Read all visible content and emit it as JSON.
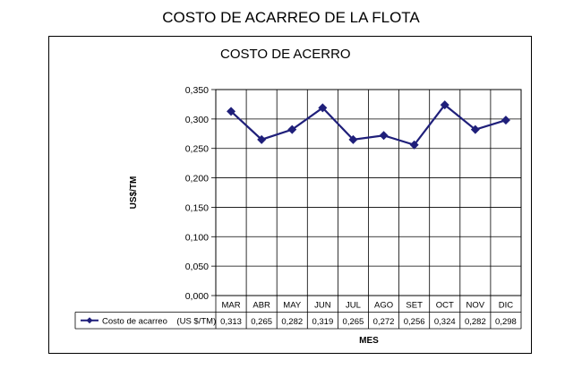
{
  "page_title": "COSTO DE ACARREO DE LA FLOTA",
  "chart_data": {
    "type": "line",
    "title": "COSTO DE ACERRO",
    "xlabel": "MES",
    "ylabel": "US$/TM",
    "ylim": [
      0,
      0.35
    ],
    "yticks": [
      "0,000",
      "0,050",
      "0,100",
      "0,150",
      "0,200",
      "0,250",
      "0,300",
      "0,350"
    ],
    "yticks_values": [
      0,
      0.05,
      0.1,
      0.15,
      0.2,
      0.25,
      0.3,
      0.35
    ],
    "grid": true,
    "categories": [
      "MAR",
      "ABR",
      "MAY",
      "JUN",
      "JUL",
      "AGO",
      "SET",
      "OCT",
      "NOV",
      "DIC"
    ],
    "series": [
      {
        "name": "Costo de acarreo    (US $/TM)",
        "values": [
          0.313,
          0.265,
          0.282,
          0.319,
          0.265,
          0.272,
          0.256,
          0.324,
          0.282,
          0.298
        ],
        "value_labels": [
          "0,313",
          "0,265",
          "0,282",
          "0,319",
          "0,265",
          "0,272",
          "0,256",
          "0,324",
          "0,282",
          "0,298"
        ],
        "color": "#1f1f7a",
        "marker": "diamond"
      }
    ],
    "legend": "data-table-row"
  }
}
